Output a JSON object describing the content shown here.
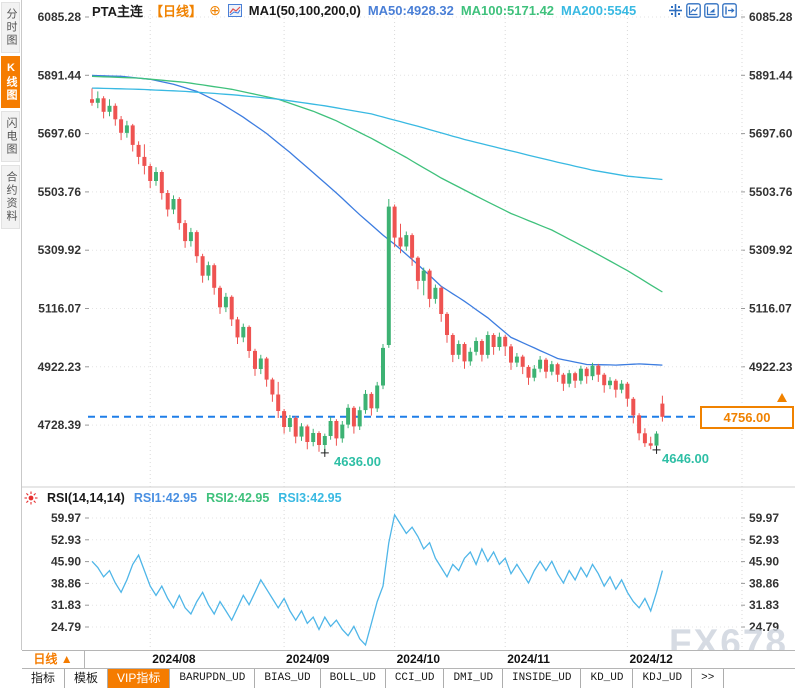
{
  "ui": {
    "left_tabs": [
      {
        "label": "分时图",
        "active": false
      },
      {
        "label": "K线图",
        "active": true
      },
      {
        "label": "闪电图",
        "active": false
      },
      {
        "label": "合约资料",
        "active": false
      }
    ],
    "header": {
      "symbol": "PTA主连",
      "period": "【日线】",
      "plus_icon": "⊕",
      "ma_settings": "MA1(50,100,200,0)",
      "ma50": "MA50:4928.32",
      "ma100": "MA100:5171.42",
      "ma200": "MA200:5545"
    },
    "rsi_header": {
      "title": "RSI(14,14,14)",
      "rsi1": "RSI1:42.95",
      "rsi2": "RSI2:42.95",
      "rsi3": "RSI3:42.95"
    },
    "top_icons": [
      "crosshair-icon",
      "axis-chart-icon",
      "chart-play-icon",
      "pane-expand-icon"
    ],
    "period_selector": "日线 ▲",
    "bottom_tabs": [
      {
        "label": "指标",
        "active": false,
        "mono": false
      },
      {
        "label": "模板",
        "active": false,
        "mono": false
      },
      {
        "label": "VIP指标",
        "active": true,
        "mono": false
      },
      {
        "label": "BARUPDN_UD",
        "active": false,
        "mono": true
      },
      {
        "label": "BIAS_UD",
        "active": false,
        "mono": true
      },
      {
        "label": "BOLL_UD",
        "active": false,
        "mono": true
      },
      {
        "label": "CCI_UD",
        "active": false,
        "mono": true
      },
      {
        "label": "DMI_UD",
        "active": false,
        "mono": true
      },
      {
        "label": "INSIDE_UD",
        "active": false,
        "mono": true
      },
      {
        "label": "KD_UD",
        "active": false,
        "mono": true
      },
      {
        "label": "KDJ_UD",
        "active": false,
        "mono": true
      },
      {
        "label": ">>",
        "active": false,
        "mono": true
      }
    ],
    "watermark": "FX678"
  },
  "chart_data": {
    "type": "candlestick",
    "title": "PTA主连 日线",
    "y_axis": {
      "main_ticks": [
        "6085.28",
        "5891.44",
        "5697.60",
        "5503.76",
        "5309.92",
        "5116.07",
        "4922.23",
        "4728.39"
      ],
      "rsi_ticks": [
        "59.97",
        "52.93",
        "45.90",
        "38.86",
        "31.83",
        "24.79"
      ]
    },
    "x_labels": [
      {
        "label": "2024/08",
        "i": 10
      },
      {
        "label": "2024/09",
        "i": 33
      },
      {
        "label": "2024/10",
        "i": 52
      },
      {
        "label": "2024/11",
        "i": 71
      },
      {
        "label": "2024/12",
        "i": 92
      }
    ],
    "last_price": {
      "label": "4756.00",
      "price": 4756
    },
    "low_markers": [
      {
        "label": "4636.00",
        "i": 40,
        "price": 4636
      },
      {
        "label": "4646.00",
        "i": 97,
        "price": 4646
      }
    ],
    "colors": {
      "up": "#3db273",
      "down": "#ee5351",
      "ma50": "#3d7de0",
      "ma100": "#3fc17c",
      "ma200": "#39b9e2",
      "rsi": "#4fb6e8",
      "price_line": "#1e7ee8",
      "grid": "#e3e3e3"
    },
    "candles": [
      [
        5812,
        5848,
        5790,
        5800
      ],
      [
        5800,
        5838,
        5782,
        5815
      ],
      [
        5815,
        5822,
        5748,
        5770
      ],
      [
        5770,
        5812,
        5755,
        5790
      ],
      [
        5790,
        5798,
        5724,
        5745
      ],
      [
        5745,
        5756,
        5676,
        5700
      ],
      [
        5700,
        5740,
        5684,
        5725
      ],
      [
        5725,
        5730,
        5638,
        5660
      ],
      [
        5660,
        5672,
        5596,
        5620
      ],
      [
        5620,
        5662,
        5562,
        5590
      ],
      [
        5590,
        5598,
        5516,
        5540
      ],
      [
        5540,
        5586,
        5524,
        5570
      ],
      [
        5570,
        5576,
        5478,
        5500
      ],
      [
        5500,
        5510,
        5422,
        5445
      ],
      [
        5445,
        5492,
        5430,
        5480
      ],
      [
        5480,
        5486,
        5378,
        5400
      ],
      [
        5400,
        5410,
        5318,
        5340
      ],
      [
        5340,
        5384,
        5322,
        5370
      ],
      [
        5370,
        5376,
        5268,
        5290
      ],
      [
        5290,
        5298,
        5202,
        5225
      ],
      [
        5225,
        5272,
        5210,
        5260
      ],
      [
        5260,
        5266,
        5162,
        5185
      ],
      [
        5185,
        5192,
        5098,
        5120
      ],
      [
        5120,
        5168,
        5104,
        5155
      ],
      [
        5155,
        5160,
        5058,
        5080
      ],
      [
        5080,
        5088,
        4998,
        5020
      ],
      [
        5020,
        5066,
        5004,
        5055
      ],
      [
        5055,
        5060,
        4952,
        4975
      ],
      [
        4975,
        4982,
        4892,
        4915
      ],
      [
        4915,
        4962,
        4898,
        4950
      ],
      [
        4950,
        4955,
        4856,
        4880
      ],
      [
        4880,
        4886,
        4806,
        4830
      ],
      [
        4830,
        4872,
        4752,
        4775
      ],
      [
        4775,
        4782,
        4700,
        4722
      ],
      [
        4722,
        4762,
        4706,
        4752
      ],
      [
        4752,
        4758,
        4668,
        4690
      ],
      [
        4690,
        4735,
        4676,
        4724
      ],
      [
        4724,
        4730,
        4648,
        4672
      ],
      [
        4672,
        4716,
        4658,
        4702
      ],
      [
        4702,
        4708,
        4640,
        4662
      ],
      [
        4662,
        4700,
        4636,
        4692
      ],
      [
        4692,
        4755,
        4680,
        4742
      ],
      [
        4742,
        4748,
        4660,
        4684
      ],
      [
        4684,
        4742,
        4670,
        4730
      ],
      [
        4730,
        4798,
        4718,
        4786
      ],
      [
        4786,
        4792,
        4700,
        4724
      ],
      [
        4724,
        4790,
        4712,
        4778
      ],
      [
        4778,
        4845,
        4766,
        4832
      ],
      [
        4832,
        4838,
        4760,
        4784
      ],
      [
        4784,
        4872,
        4772,
        4860
      ],
      [
        4860,
        4998,
        4848,
        4985
      ],
      [
        4995,
        5480,
        4985,
        5455
      ],
      [
        5455,
        5462,
        5320,
        5352
      ],
      [
        5352,
        5398,
        5300,
        5322
      ],
      [
        5322,
        5372,
        5308,
        5360
      ],
      [
        5360,
        5366,
        5258,
        5285
      ],
      [
        5285,
        5290,
        5180,
        5208
      ],
      [
        5208,
        5252,
        5160,
        5242
      ],
      [
        5242,
        5248,
        5120,
        5148
      ],
      [
        5148,
        5196,
        5132,
        5185
      ],
      [
        5185,
        5190,
        5072,
        5098
      ],
      [
        5098,
        5104,
        5002,
        5028
      ],
      [
        5028,
        5034,
        4938,
        4962
      ],
      [
        4962,
        5010,
        4948,
        4998
      ],
      [
        4998,
        5004,
        4916,
        4940
      ],
      [
        4940,
        4986,
        4926,
        4972
      ],
      [
        4972,
        5020,
        4960,
        5008
      ],
      [
        5008,
        5014,
        4940,
        4962
      ],
      [
        4962,
        5040,
        4950,
        5028
      ],
      [
        5028,
        5034,
        4962,
        4988
      ],
      [
        4988,
        5036,
        4976,
        5022
      ],
      [
        5022,
        5028,
        4958,
        4990
      ],
      [
        4990,
        4998,
        4912,
        4936
      ],
      [
        4936,
        4968,
        4922,
        4956
      ],
      [
        4956,
        4962,
        4898,
        4922
      ],
      [
        4922,
        4928,
        4862,
        4886
      ],
      [
        4886,
        4928,
        4874,
        4916
      ],
      [
        4916,
        4958,
        4904,
        4946
      ],
      [
        4946,
        4952,
        4884,
        4906
      ],
      [
        4906,
        4942,
        4894,
        4931
      ],
      [
        4931,
        4936,
        4872,
        4896
      ],
      [
        4896,
        4902,
        4842,
        4866
      ],
      [
        4866,
        4912,
        4854,
        4901
      ],
      [
        4901,
        4906,
        4852,
        4876
      ],
      [
        4876,
        4926,
        4864,
        4916
      ],
      [
        4916,
        4922,
        4866,
        4891
      ],
      [
        4891,
        4936,
        4878,
        4926
      ],
      [
        4926,
        4932,
        4872,
        4896
      ],
      [
        4896,
        4902,
        4836,
        4861
      ],
      [
        4861,
        4888,
        4848,
        4876
      ],
      [
        4876,
        4882,
        4820,
        4846
      ],
      [
        4846,
        4878,
        4834,
        4866
      ],
      [
        4866,
        4872,
        4790,
        4816
      ],
      [
        4816,
        4822,
        4734,
        4761
      ],
      [
        4761,
        4768,
        4678,
        4701
      ],
      [
        4701,
        4718,
        4656,
        4668
      ],
      [
        4668,
        4690,
        4648,
        4660
      ],
      [
        4660,
        4708,
        4646,
        4700
      ],
      [
        4800,
        4826,
        4740,
        4756
      ]
    ],
    "ma_lines": [
      {
        "name": "MA50",
        "points": [
          [
            0,
            5891
          ],
          [
            5,
            5888
          ],
          [
            10,
            5878
          ],
          [
            14,
            5862
          ],
          [
            18,
            5838
          ],
          [
            22,
            5800
          ],
          [
            26,
            5752
          ],
          [
            30,
            5698
          ],
          [
            34,
            5635
          ],
          [
            38,
            5568
          ],
          [
            42,
            5500
          ],
          [
            46,
            5428
          ],
          [
            50,
            5360
          ],
          [
            52,
            5330
          ],
          [
            56,
            5262
          ],
          [
            60,
            5190
          ],
          [
            64,
            5140
          ],
          [
            68,
            5085
          ],
          [
            72,
            5020
          ],
          [
            76,
            4985
          ],
          [
            80,
            4950
          ],
          [
            85,
            4930
          ],
          [
            90,
            4928
          ],
          [
            94,
            4932
          ],
          [
            98,
            4928
          ]
        ]
      },
      {
        "name": "MA100",
        "points": [
          [
            0,
            5888
          ],
          [
            8,
            5882
          ],
          [
            16,
            5868
          ],
          [
            24,
            5845
          ],
          [
            32,
            5812
          ],
          [
            38,
            5772
          ],
          [
            42,
            5740
          ],
          [
            48,
            5682
          ],
          [
            54,
            5618
          ],
          [
            60,
            5550
          ],
          [
            66,
            5490
          ],
          [
            72,
            5432
          ],
          [
            79,
            5377
          ],
          [
            86,
            5306
          ],
          [
            92,
            5242
          ],
          [
            98,
            5171
          ]
        ]
      },
      {
        "name": "MA200",
        "points": [
          [
            0,
            5849
          ],
          [
            8,
            5845
          ],
          [
            16,
            5838
          ],
          [
            24,
            5827
          ],
          [
            32,
            5812
          ],
          [
            40,
            5790
          ],
          [
            48,
            5763
          ],
          [
            56,
            5722
          ],
          [
            64,
            5678
          ],
          [
            72,
            5640
          ],
          [
            79,
            5607
          ],
          [
            86,
            5576
          ],
          [
            92,
            5556
          ],
          [
            98,
            5545
          ]
        ]
      }
    ],
    "rsi_series": [
      46,
      44,
      41,
      43,
      39,
      36,
      40,
      45,
      48,
      43,
      38,
      35,
      38,
      34,
      31,
      35,
      31,
      29,
      33,
      36,
      32,
      29,
      33,
      30,
      27,
      31,
      35,
      32,
      36,
      40,
      37,
      34,
      31,
      34,
      30,
      27,
      30,
      26,
      28,
      24,
      28,
      25,
      27,
      24,
      22,
      25,
      21,
      19,
      26,
      33,
      38,
      52,
      61,
      58,
      55,
      57,
      54,
      50,
      52,
      47,
      44,
      41,
      45,
      43,
      47,
      49,
      45,
      50,
      46,
      49,
      45,
      47,
      42,
      45,
      42,
      39,
      43,
      46,
      43,
      46,
      42,
      39,
      43,
      40,
      44,
      41,
      45,
      42,
      38,
      41,
      37,
      40,
      36,
      33,
      31,
      34,
      30,
      36,
      43
    ]
  }
}
